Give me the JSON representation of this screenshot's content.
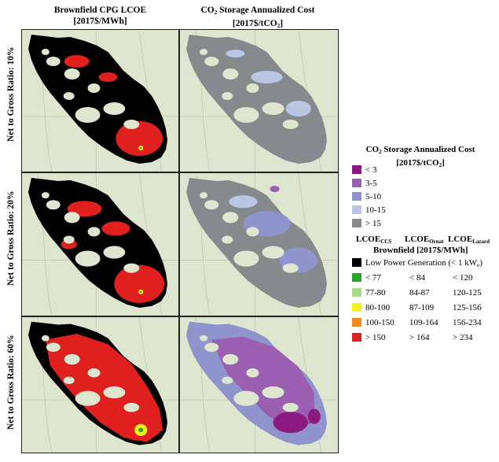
{
  "columns": [
    {
      "title_line1": "Brownfield CPG LCOE",
      "title_line2": "[2017$/MWh]"
    },
    {
      "title_main": "CO",
      "title_sub": "2",
      "title_rest": " Storage Annualized Cost",
      "title_line2_a": "[2017$/tCO",
      "title_line2_sub": "2",
      "title_line2_b": "]"
    }
  ],
  "rows": [
    {
      "label": "Net to Gross Ratio: 10%"
    },
    {
      "label": "Net to Gross Ratio: 20%"
    },
    {
      "label": "Net to Gross Ratio: 60%"
    }
  ],
  "storage_legend": {
    "title_a": "CO",
    "title_sub": "2",
    "title_b": " Storage Annualized Cost",
    "units_a": "[2017$/tCO",
    "units_sub": "2",
    "units_b": "]",
    "items": [
      {
        "label": "<  3",
        "color": "#8b1a7e"
      },
      {
        "label": "3-5",
        "color": "#9a5fb0"
      },
      {
        "label": "5-10",
        "color": "#8f94cc"
      },
      {
        "label": "10-15",
        "color": "#b9c6e4"
      },
      {
        "label": "> 15",
        "color": "#868a8c"
      }
    ]
  },
  "lcoe_legend": {
    "col_ccs": "LCOE",
    "col_ccs_sub": "CCS",
    "col_ornat": "LCOE",
    "col_ornat_sub": "Ornat",
    "col_lazard": "LCOE",
    "col_lazard_sub": "Lazard",
    "subtitle": "Brownfield [2017$/MWh]",
    "low_power_a": "Low Power Generation (< 1 kW",
    "low_power_sub": "e",
    "low_power_b": ")",
    "low_power_color": "#000000",
    "items": [
      {
        "ccs": "< 77",
        "ornat": "< 84",
        "lazard": "< 120",
        "color": "#2aa52a"
      },
      {
        "ccs": "77-80",
        "ornat": "84-87",
        "lazard": "120-125",
        "color": "#a9d98a"
      },
      {
        "ccs": "80-100",
        "ornat": "87-109",
        "lazard": "125-156",
        "color": "#f2f21c"
      },
      {
        "ccs": "100-150",
        "ornat": "109-164",
        "lazard": "156-234",
        "color": "#f08a1e"
      },
      {
        "ccs": "> 150",
        "ornat": "> 164",
        "lazard": "> 234",
        "color": "#e01f1f"
      }
    ]
  },
  "map_colors": {
    "base": "#dfe6cf",
    "low_power": "#000000",
    "high_lcoe": "#e01f1f",
    "storage_gray": "#868a8c",
    "storage_light": "#b9c6e4",
    "storage_mid": "#8f94cc",
    "storage_purple": "#9a5fb0",
    "storage_dark": "#8b1a7e"
  }
}
